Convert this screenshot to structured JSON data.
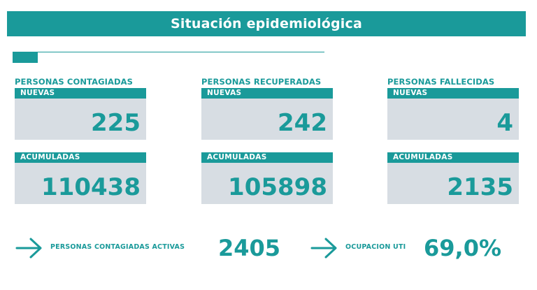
{
  "header": {
    "title": "Situación epidemiológica"
  },
  "colors": {
    "accent": "#1a9a9a",
    "box_bg": "#d7dde3",
    "text_on_accent": "#ffffff"
  },
  "cards": [
    {
      "title": "PERSONAS CONTAGIADAS",
      "nuevas_label": "NUEVAS",
      "nuevas_value": "225",
      "acumuladas_label": "ACUMULADAS",
      "acumuladas_value": "110438"
    },
    {
      "title": "PERSONAS RECUPERADAS",
      "nuevas_label": "NUEVAS",
      "nuevas_value": "242",
      "acumuladas_label": "ACUMULADAS",
      "acumuladas_value": "105898"
    },
    {
      "title": "PERSONAS FALLECIDAS",
      "nuevas_label": "NUEVAS",
      "nuevas_value": "4",
      "acumuladas_label": "ACUMULADAS",
      "acumuladas_value": "2135"
    }
  ],
  "summary": [
    {
      "icon": "arrow-right-icon",
      "label": "PERSONAS CONTAGIADAS ACTIVAS",
      "value": "2405"
    },
    {
      "icon": "arrow-right-icon",
      "label": "OCUPACION UTI",
      "value": "69,0%"
    }
  ]
}
